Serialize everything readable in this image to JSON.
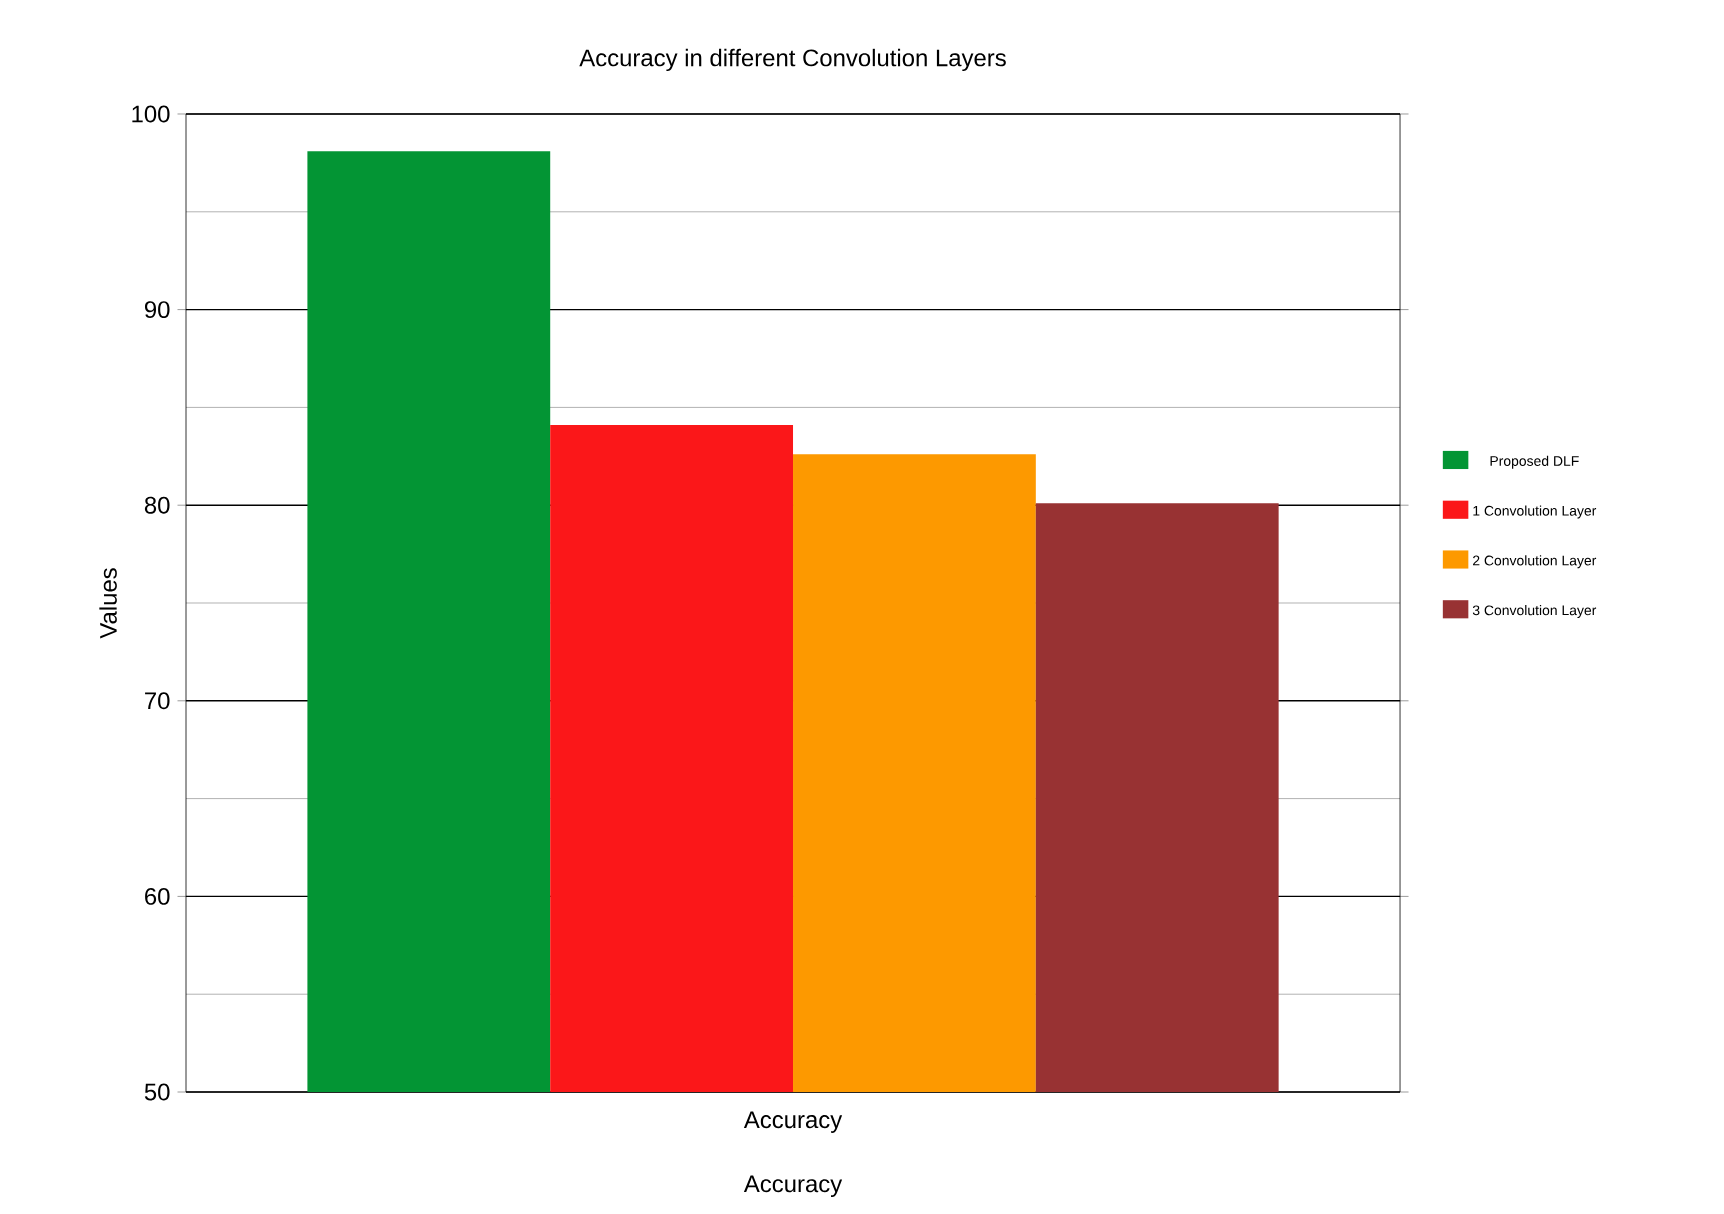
{
  "chart_data": {
    "type": "bar",
    "title": "Accuracy in different Convolution Layers",
    "xlabel": "Accuracy",
    "ylabel": "Values",
    "categories": [
      "Accuracy"
    ],
    "series": [
      {
        "name": "Proposed DLF",
        "color": "#039534",
        "values": [
          98.1
        ]
      },
      {
        "name": "1 Convolution Layer",
        "color": "#fb1719",
        "values": [
          84.1
        ]
      },
      {
        "name": "2 Convolution Layer",
        "color": "#fd9900",
        "values": [
          82.6
        ]
      },
      {
        "name": "3 Convolution Layer",
        "color": "#983233",
        "values": [
          80.1
        ]
      }
    ],
    "ylim": [
      50,
      100
    ],
    "yticks": [
      50,
      {
        "value": 55,
        "label": null
      },
      60,
      {
        "value": 65,
        "label": null
      },
      70,
      {
        "value": 75,
        "label": null
      },
      80,
      {
        "value": 85,
        "label": null
      },
      90,
      {
        "value": 95,
        "label": null
      },
      100
    ],
    "grid": true,
    "legend": "right"
  }
}
